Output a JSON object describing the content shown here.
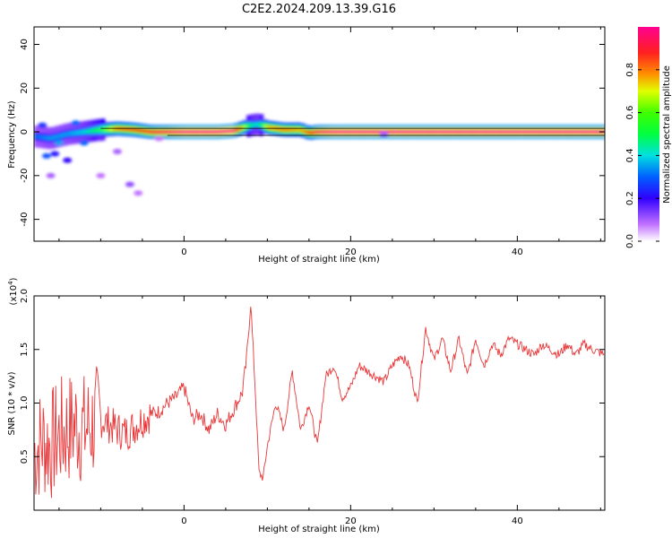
{
  "page_title": "C2E2.2024.209.13.39.G16",
  "chart_data": [
    {
      "type": "heatmap",
      "title": "C2E2.2024.209.13.39.G16",
      "xlabel": "Height of straight line (km)",
      "ylabel": "Frequency (Hz)",
      "xlim": [
        -18,
        50.5
      ],
      "ylim": [
        -50,
        48
      ],
      "xticks": [
        0,
        20,
        40
      ],
      "yticks": [
        -40,
        -20,
        0,
        20,
        40
      ],
      "xtick_labels": [
        "0",
        "20",
        "40"
      ],
      "ytick_labels": [
        "-40",
        "-20",
        "0",
        "20",
        "40"
      ],
      "grid": false,
      "colorbar": {
        "label": "Normalized spectral amplitude",
        "range": [
          0.0,
          1.0
        ],
        "ticks": [
          0.0,
          0.2,
          0.4,
          0.6,
          0.8
        ],
        "tick_labels": [
          "0.0",
          "0.2",
          "0.4",
          "0.6",
          "0.8"
        ]
      },
      "frequency_track": {
        "x": [
          -18,
          -16,
          -14,
          -12,
          -10,
          -8,
          -6,
          -4,
          -2,
          0,
          2,
          4,
          6,
          8,
          9,
          10,
          12,
          14,
          15,
          16,
          18,
          20,
          24,
          28,
          32,
          36,
          40,
          44,
          48,
          50.5
        ],
        "y": [
          -2,
          -3,
          -1,
          0,
          1,
          1.5,
          1,
          0,
          0,
          0,
          0,
          0,
          0.5,
          3,
          3.5,
          2,
          1,
          1,
          -0.5,
          0,
          0,
          0,
          0,
          0,
          0,
          0,
          0,
          0,
          0,
          0
        ],
        "amplitude": [
          0.3,
          0.35,
          0.35,
          0.4,
          0.55,
          0.8,
          0.85,
          0.9,
          0.95,
          1.0,
          1.0,
          1.0,
          1.0,
          0.45,
          0.4,
          0.75,
          0.8,
          0.75,
          0.85,
          0.95,
          1.0,
          1.0,
          1.0,
          1.0,
          1.0,
          1.0,
          1.0,
          1.0,
          1.0,
          1.0
        ]
      }
    },
    {
      "type": "line",
      "xlabel": "Height of straight line (km)",
      "ylabel": "SNR (10 * v/v)",
      "y_multiplier_label": "(x10",
      "y_multiplier_exp": "4",
      "y_multiplier_close": ")",
      "xlim": [
        -18,
        50.5
      ],
      "ylim": [
        0,
        2.0
      ],
      "xticks": [
        0,
        20,
        40
      ],
      "yticks": [
        0.5,
        1.0,
        1.5,
        2.0
      ],
      "xtick_labels": [
        "0",
        "20",
        "40"
      ],
      "ytick_labels": [
        "0.5",
        "1.0",
        "1.5",
        "2.0"
      ],
      "grid": false,
      "series": [
        {
          "color": "#e8383a",
          "x": [
            -18,
            -17,
            -16,
            -15,
            -14,
            -13,
            -12,
            -11,
            -10,
            -9,
            -8,
            -7,
            -6,
            -5,
            -4,
            -3,
            -2,
            -1,
            0,
            1,
            2,
            3,
            4,
            5,
            6,
            7,
            7.5,
            8,
            8.5,
            9,
            9.5,
            10,
            11,
            12,
            13,
            14,
            15,
            16,
            17,
            18,
            19,
            20,
            21,
            22,
            23,
            24,
            25,
            26,
            27,
            28,
            29,
            30,
            31,
            32,
            33,
            34,
            35,
            36,
            37,
            38,
            39,
            40,
            41,
            42,
            43,
            44,
            45,
            46,
            47,
            48,
            49,
            50.5
          ],
          "y": [
            0.55,
            0.65,
            0.6,
            0.7,
            0.75,
            0.8,
            0.75,
            0.8,
            0.85,
            0.8,
            0.75,
            0.72,
            0.78,
            0.85,
            0.9,
            0.92,
            1.0,
            1.05,
            1.15,
            0.85,
            0.9,
            0.75,
            0.9,
            0.8,
            0.95,
            1.1,
            1.4,
            1.95,
            1.2,
            0.35,
            0.3,
            0.6,
            1.0,
            0.75,
            1.3,
            0.75,
            1.0,
            0.6,
            1.25,
            1.35,
            1.05,
            1.15,
            1.35,
            1.3,
            1.25,
            1.2,
            1.35,
            1.45,
            1.35,
            1.0,
            1.7,
            1.4,
            1.6,
            1.3,
            1.6,
            1.25,
            1.6,
            1.35,
            1.55,
            1.45,
            1.6,
            1.55,
            1.5,
            1.45,
            1.55,
            1.5,
            1.45,
            1.55,
            1.45,
            1.55,
            1.5,
            1.45
          ]
        }
      ]
    }
  ]
}
